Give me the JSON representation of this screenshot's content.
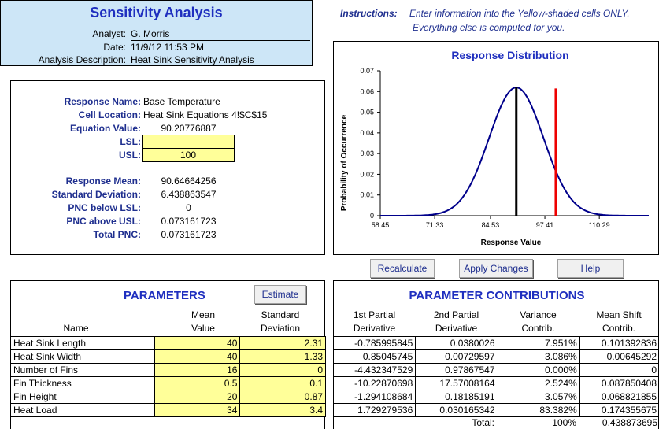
{
  "header": {
    "title": "Sensitivity Analysis",
    "analyst_label": "Analyst:",
    "analyst": "G. Morris",
    "date_label": "Date:",
    "date": "11/9/12 11:53 PM",
    "desc_label": "Analysis Description:",
    "desc": "Heat Sink Sensitivity Analysis"
  },
  "instructions": {
    "label": "Instructions:",
    "line1": "Enter information into the Yellow-shaded cells ONLY.",
    "line2": "Everything else is computed for you."
  },
  "response": {
    "name_label": "Response Name:",
    "name": "Base Temperature",
    "cell_label": "Cell Location:",
    "cell": "Heat Sink Equations 4!$C$15",
    "eq_label": "Equation Value:",
    "eq": "90.20776887",
    "lsl_label": "LSL:",
    "lsl": "",
    "usl_label": "USL:",
    "usl": "100",
    "mean_label": "Response Mean:",
    "mean": "90.64664256",
    "sd_label": "Standard Deviation:",
    "sd": "6.438863547",
    "pnc_lsl_label": "PNC below LSL:",
    "pnc_lsl": "0",
    "pnc_usl_label": "PNC above USL:",
    "pnc_usl": "0.073161723",
    "total_label": "Total PNC:",
    "total": "0.073161723"
  },
  "chart_data": {
    "type": "line",
    "title": "Response Distribution",
    "xlabel": "Response Value",
    "ylabel": "Probability of Occurrence",
    "xlim": [
      58.45,
      122.0
    ],
    "ylim": [
      0,
      0.07
    ],
    "x_ticks": [
      "58.45",
      "71.33",
      "84.53",
      "97.41",
      "110.29"
    ],
    "x_tick_values": [
      58.45,
      71.33,
      84.53,
      97.41,
      110.29
    ],
    "y_ticks": [
      "0",
      "0.01",
      "0.02",
      "0.03",
      "0.04",
      "0.05",
      "0.06",
      "0.07"
    ],
    "y_tick_values": [
      0,
      0.01,
      0.02,
      0.03,
      0.04,
      0.05,
      0.06,
      0.07
    ],
    "mean": 90.64664256,
    "sd": 6.438863547,
    "usl": 100,
    "curve_color": "#00008b",
    "mean_line_color": "#000000",
    "usl_line_color": "#ee0000"
  },
  "buttons": {
    "recalc": "Recalculate",
    "apply": "Apply Changes",
    "help": "Help",
    "estimate": "Estimate"
  },
  "parameters": {
    "title": "PARAMETERS",
    "col_name": "Name",
    "col_mean_1": "Mean",
    "col_mean_2": "Value",
    "col_sd_1": "Standard",
    "col_sd_2": "Deviation",
    "rows": [
      {
        "name": "Heat Sink Length",
        "mean": "40",
        "sd": "2.31"
      },
      {
        "name": "Heat Sink Width",
        "mean": "40",
        "sd": "1.33"
      },
      {
        "name": "Number of Fins",
        "mean": "16",
        "sd": "0"
      },
      {
        "name": "Fin Thickness",
        "mean": "0.5",
        "sd": "0.1"
      },
      {
        "name": "Fin Height",
        "mean": "20",
        "sd": "0.87"
      },
      {
        "name": "Heat Load",
        "mean": "34",
        "sd": "3.4"
      }
    ]
  },
  "contributions": {
    "title": "PARAMETER CONTRIBUTIONS",
    "h1a": "1st Partial",
    "h1b": "Derivative",
    "h2a": "2nd Partial",
    "h2b": "Derivative",
    "h3a": "Variance",
    "h3b": "Contrib.",
    "h4a": "Mean Shift",
    "h4b": "Contrib.",
    "rows": [
      {
        "d1": "-0.785995845",
        "d2": "0.0380026",
        "var": "7.951%",
        "ms": "0.101392836"
      },
      {
        "d1": "0.85045745",
        "d2": "0.00729597",
        "var": "3.086%",
        "ms": "0.00645292"
      },
      {
        "d1": "-4.432347529",
        "d2": "0.97867547",
        "var": "0.000%",
        "ms": "0"
      },
      {
        "d1": "-10.22870698",
        "d2": "17.57008164",
        "var": "2.524%",
        "ms": "0.087850408"
      },
      {
        "d1": "-1.294108684",
        "d2": "0.18185191",
        "var": "3.057%",
        "ms": "0.068821855"
      },
      {
        "d1": "1.729279536",
        "d2": "0.030165342",
        "var": "83.382%",
        "ms": "0.174355675"
      }
    ],
    "total_label": "Total:",
    "total_var": "100%",
    "total_ms": "0.438873695"
  }
}
